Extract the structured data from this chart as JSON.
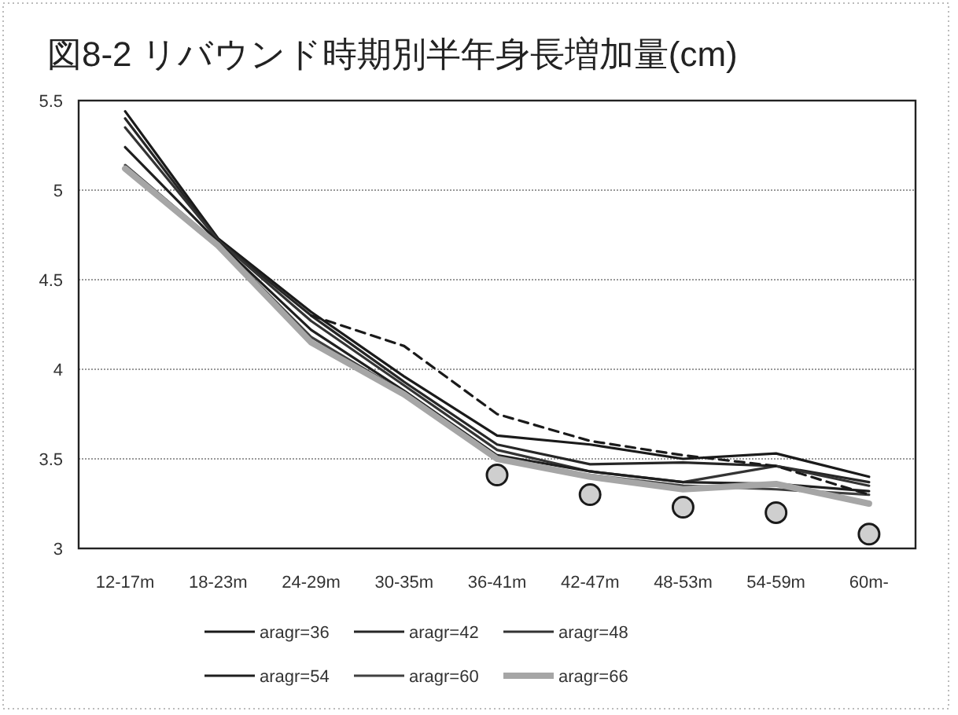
{
  "chart_data": {
    "type": "line",
    "title": "図8-2 リバウンド時期別半年身長増加量(cm)",
    "categories": [
      "12-17m",
      "18-23m",
      "24-29m",
      "30-35m",
      "36-41m",
      "42-47m",
      "48-53m",
      "54-59m",
      "60m-"
    ],
    "ylim": [
      3,
      5.5
    ],
    "yticks": [
      3,
      3.5,
      4,
      4.5,
      5,
      5.5
    ],
    "grid": "y",
    "legend": "bottom",
    "marker": "none",
    "line_style": "solid",
    "series": [
      {
        "name": "aragr=36",
        "color": "#1a1a1a",
        "values": [
          5.44,
          4.73,
          4.32,
          3.96,
          3.63,
          3.58,
          3.5,
          3.53,
          3.4
        ]
      },
      {
        "name": "aragr=42",
        "color": "#262626",
        "values": [
          5.4,
          4.72,
          4.3,
          3.93,
          3.58,
          3.47,
          3.48,
          3.46,
          3.37
        ]
      },
      {
        "name": "aragr=48",
        "color": "#333333",
        "values": [
          5.35,
          4.72,
          4.27,
          3.91,
          3.55,
          3.43,
          3.37,
          3.46,
          3.35
        ]
      },
      {
        "name": "aragr=54",
        "color": "#1f1f1f",
        "values": [
          5.24,
          4.71,
          4.22,
          3.88,
          3.52,
          3.43,
          3.37,
          3.36,
          3.32
        ]
      },
      {
        "name": "aragr=60",
        "color": "#404040",
        "values": [
          5.14,
          4.7,
          4.18,
          3.87,
          3.5,
          3.41,
          3.35,
          3.33,
          3.3
        ]
      },
      {
        "name": "aragr=66",
        "color": "#a6a6a6",
        "values": [
          5.12,
          4.69,
          4.15,
          3.86,
          3.5,
          3.4,
          3.33,
          3.36,
          3.25
        ]
      },
      {
        "color": "#1a1a1a",
        "line_style": "dashed",
        "values": [
          null,
          null,
          4.3,
          4.13,
          3.75,
          3.6,
          3.52,
          3.46,
          3.3
        ]
      },
      {
        "type": "scatter",
        "marker": "circle",
        "color": "#1a1a1a",
        "values": [
          null,
          null,
          null,
          null,
          3.41,
          3.3,
          3.23,
          3.2,
          3.08
        ]
      }
    ]
  }
}
